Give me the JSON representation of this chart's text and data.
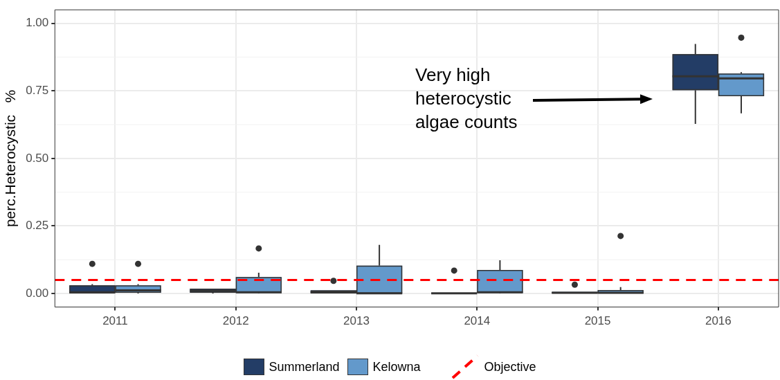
{
  "chart_data": {
    "type": "box",
    "ylabel": "perc.Heterocystic   %",
    "categories": [
      "2011",
      "2012",
      "2013",
      "2014",
      "2015",
      "2016"
    ],
    "series": [
      {
        "name": "Summerland",
        "color": "#233d66",
        "boxes": [
          {
            "low": 0,
            "q1": 0,
            "median": 0.005,
            "q3": 0.03,
            "high": 0.035,
            "outliers": [
              0.11
            ]
          },
          {
            "low": 0,
            "q1": 0.003,
            "median": 0.01,
            "q3": 0.018,
            "high": 0.018
          },
          {
            "low": 0,
            "q1": 0,
            "median": 0.005,
            "q3": 0.012,
            "high": 0.012,
            "outliers": [
              0.047
            ]
          },
          {
            "low": 0,
            "q1": 0,
            "median": 0.001,
            "q3": 0.003,
            "high": 0.003,
            "outliers": [
              0.085
            ]
          },
          {
            "low": 0,
            "q1": 0,
            "median": 0.003,
            "q3": 0.006,
            "high": 0.006,
            "outliers": [
              0.033
            ]
          },
          {
            "low": 0.628,
            "q1": 0.753,
            "median": 0.804,
            "q3": 0.886,
            "high": 0.924
          }
        ]
      },
      {
        "name": "Kelowna",
        "color": "#6399cb",
        "boxes": [
          {
            "low": 0,
            "q1": 0.003,
            "median": 0.012,
            "q3": 0.03,
            "high": 0.035,
            "outliers": [
              0.11
            ]
          },
          {
            "low": 0,
            "q1": 0.002,
            "median": 0.005,
            "q3": 0.061,
            "high": 0.077,
            "outliers": [
              0.167
            ]
          },
          {
            "low": 0,
            "q1": 0,
            "median": 0.001,
            "q3": 0.103,
            "high": 0.18
          },
          {
            "low": 0,
            "q1": 0.002,
            "median": 0.005,
            "q3": 0.087,
            "high": 0.123
          },
          {
            "low": 0,
            "q1": 0,
            "median": 0.003,
            "q3": 0.013,
            "high": 0.024,
            "outliers": [
              0.213
            ]
          },
          {
            "low": 0.667,
            "q1": 0.73,
            "median": 0.796,
            "q3": 0.814,
            "high": 0.819,
            "outliers": [
              0.947
            ]
          }
        ]
      }
    ],
    "ylim": [
      -0.05,
      1.05
    ],
    "yticks": [
      {
        "value": 0,
        "label": "0.00"
      },
      {
        "value": 0.25,
        "label": "0.25"
      },
      {
        "value": 0.5,
        "label": "0.50"
      },
      {
        "value": 0.75,
        "label": "0.75"
      },
      {
        "value": 1,
        "label": "1.00"
      }
    ],
    "ref_lines": [
      {
        "axis": "y",
        "value": 0.05,
        "label": "Objective",
        "color": "#ff0000",
        "line_style": "dashed"
      }
    ],
    "annotations": [
      "Very high heterocystic algae counts"
    ],
    "grid": true,
    "legend": "bottom"
  }
}
